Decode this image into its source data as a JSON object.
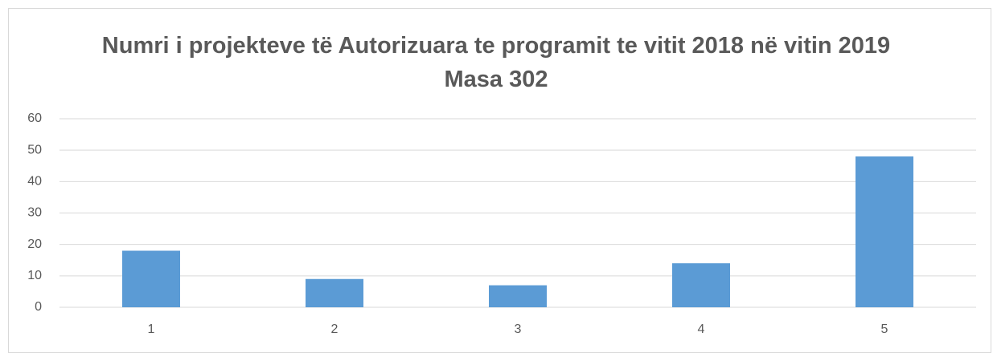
{
  "chart_data": {
    "type": "bar",
    "title": "Numri i projekteve të Autorizuara te programit te vitit 2018 në vitin 2019 Masa 302",
    "categories": [
      "1",
      "2",
      "3",
      "4",
      "5"
    ],
    "values": [
      18,
      9,
      7,
      14,
      48
    ],
    "color": "#5b9bd5",
    "ylim": [
      0,
      60
    ],
    "yticks": [
      0,
      10,
      20,
      30,
      40,
      50,
      60
    ],
    "grid": true
  }
}
